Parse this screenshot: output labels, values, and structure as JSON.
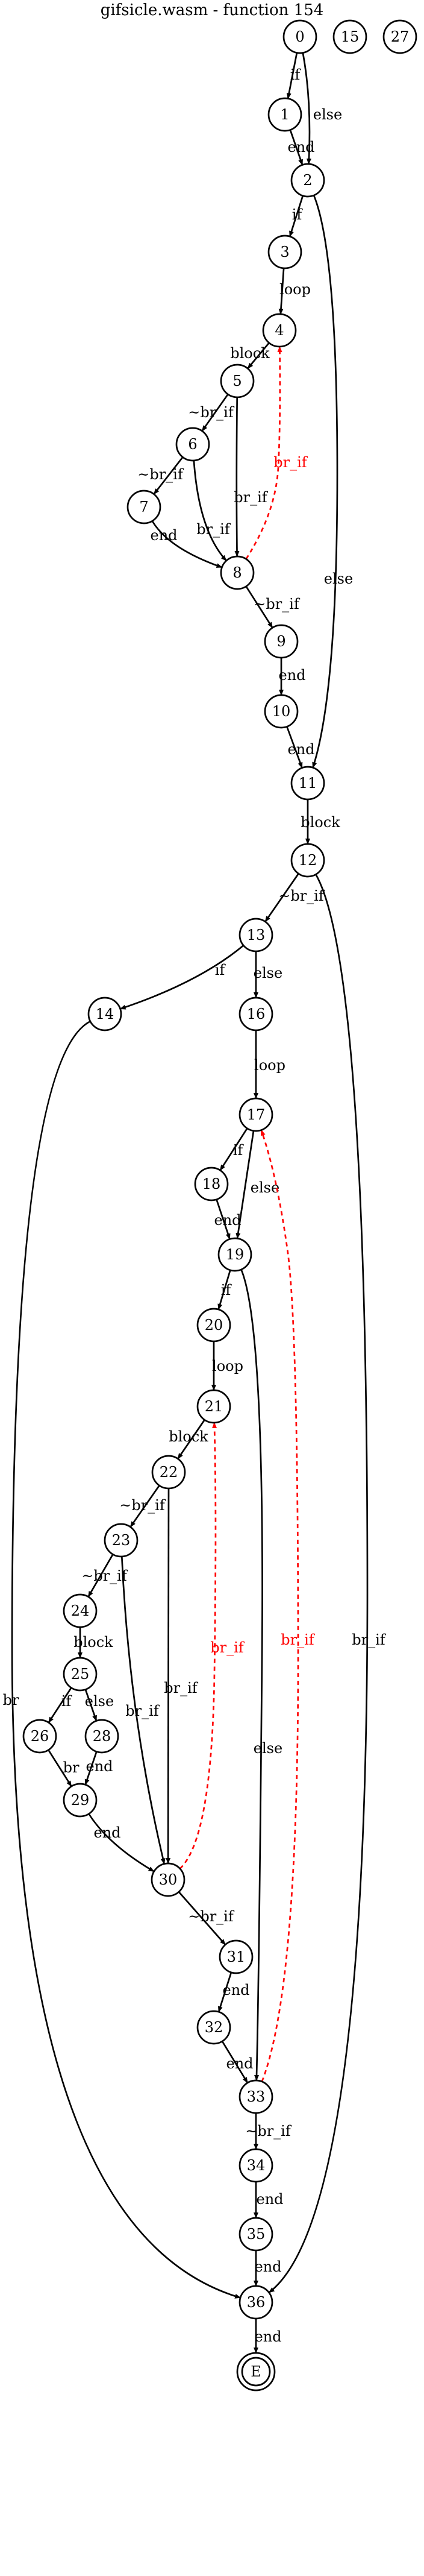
{
  "title": "gifsicle.wasm - function 154",
  "colors": {
    "normal": "#000000",
    "back": "#ff0000"
  },
  "nodes": [
    {
      "id": "n0",
      "label": "0"
    },
    {
      "id": "n15",
      "label": "15"
    },
    {
      "id": "n27",
      "label": "27"
    },
    {
      "id": "n1",
      "label": "1"
    },
    {
      "id": "n2",
      "label": "2"
    },
    {
      "id": "n3",
      "label": "3"
    },
    {
      "id": "n4",
      "label": "4"
    },
    {
      "id": "n5",
      "label": "5"
    },
    {
      "id": "n6",
      "label": "6"
    },
    {
      "id": "n7",
      "label": "7"
    },
    {
      "id": "n8",
      "label": "8"
    },
    {
      "id": "n9",
      "label": "9"
    },
    {
      "id": "n10",
      "label": "10"
    },
    {
      "id": "n11",
      "label": "11"
    },
    {
      "id": "n12",
      "label": "12"
    },
    {
      "id": "n13",
      "label": "13"
    },
    {
      "id": "n14",
      "label": "14"
    },
    {
      "id": "n16",
      "label": "16"
    },
    {
      "id": "n17",
      "label": "17"
    },
    {
      "id": "n18",
      "label": "18"
    },
    {
      "id": "n19",
      "label": "19"
    },
    {
      "id": "n20",
      "label": "20"
    },
    {
      "id": "n21",
      "label": "21"
    },
    {
      "id": "n22",
      "label": "22"
    },
    {
      "id": "n23",
      "label": "23"
    },
    {
      "id": "n24",
      "label": "24"
    },
    {
      "id": "n25",
      "label": "25"
    },
    {
      "id": "n26",
      "label": "26"
    },
    {
      "id": "n28",
      "label": "28"
    },
    {
      "id": "n29",
      "label": "29"
    },
    {
      "id": "n30",
      "label": "30"
    },
    {
      "id": "n31",
      "label": "31"
    },
    {
      "id": "n32",
      "label": "32"
    },
    {
      "id": "n33",
      "label": "33"
    },
    {
      "id": "n34",
      "label": "34"
    },
    {
      "id": "n35",
      "label": "35"
    },
    {
      "id": "n36",
      "label": "36"
    },
    {
      "id": "nE",
      "label": "E"
    }
  ],
  "edges": [
    {
      "from": "0",
      "to": "1",
      "label": "if",
      "kind": "normal"
    },
    {
      "from": "0",
      "to": "2",
      "label": "else",
      "kind": "normal"
    },
    {
      "from": "1",
      "to": "2",
      "label": "end",
      "kind": "normal"
    },
    {
      "from": "2",
      "to": "3",
      "label": "if",
      "kind": "normal"
    },
    {
      "from": "2",
      "to": "11",
      "label": "else",
      "kind": "normal"
    },
    {
      "from": "3",
      "to": "4",
      "label": "loop",
      "kind": "normal"
    },
    {
      "from": "4",
      "to": "5",
      "label": "block",
      "kind": "normal"
    },
    {
      "from": "5",
      "to": "6",
      "label": "~br_if",
      "kind": "normal"
    },
    {
      "from": "5",
      "to": "8",
      "label": "br_if",
      "kind": "normal"
    },
    {
      "from": "6",
      "to": "7",
      "label": "~br_if",
      "kind": "normal"
    },
    {
      "from": "6",
      "to": "8",
      "label": "br_if",
      "kind": "normal"
    },
    {
      "from": "7",
      "to": "8",
      "label": "end",
      "kind": "normal"
    },
    {
      "from": "8",
      "to": "4",
      "label": "br_if",
      "kind": "back"
    },
    {
      "from": "8",
      "to": "9",
      "label": "~br_if",
      "kind": "normal"
    },
    {
      "from": "9",
      "to": "10",
      "label": "end",
      "kind": "normal"
    },
    {
      "from": "10",
      "to": "11",
      "label": "end",
      "kind": "normal"
    },
    {
      "from": "11",
      "to": "12",
      "label": "block",
      "kind": "normal"
    },
    {
      "from": "12",
      "to": "13",
      "label": "~br_if",
      "kind": "normal"
    },
    {
      "from": "12",
      "to": "36",
      "label": "br_if",
      "kind": "normal"
    },
    {
      "from": "13",
      "to": "14",
      "label": "if",
      "kind": "normal"
    },
    {
      "from": "13",
      "to": "16",
      "label": "else",
      "kind": "normal"
    },
    {
      "from": "14",
      "to": "36",
      "label": "br",
      "kind": "normal"
    },
    {
      "from": "16",
      "to": "17",
      "label": "loop",
      "kind": "normal"
    },
    {
      "from": "17",
      "to": "18",
      "label": "if",
      "kind": "normal"
    },
    {
      "from": "17",
      "to": "19",
      "label": "else",
      "kind": "normal"
    },
    {
      "from": "18",
      "to": "19",
      "label": "end",
      "kind": "normal"
    },
    {
      "from": "19",
      "to": "20",
      "label": "if",
      "kind": "normal"
    },
    {
      "from": "19",
      "to": "33",
      "label": "else",
      "kind": "normal"
    },
    {
      "from": "20",
      "to": "21",
      "label": "loop",
      "kind": "normal"
    },
    {
      "from": "21",
      "to": "22",
      "label": "block",
      "kind": "normal"
    },
    {
      "from": "22",
      "to": "23",
      "label": "~br_if",
      "kind": "normal"
    },
    {
      "from": "22",
      "to": "30",
      "label": "br_if",
      "kind": "normal"
    },
    {
      "from": "23",
      "to": "24",
      "label": "~br_if",
      "kind": "normal"
    },
    {
      "from": "23",
      "to": "30",
      "label": "br_if",
      "kind": "normal"
    },
    {
      "from": "24",
      "to": "25",
      "label": "block",
      "kind": "normal"
    },
    {
      "from": "25",
      "to": "26",
      "label": "if",
      "kind": "normal"
    },
    {
      "from": "25",
      "to": "28",
      "label": "else",
      "kind": "normal"
    },
    {
      "from": "26",
      "to": "29",
      "label": "br",
      "kind": "normal"
    },
    {
      "from": "28",
      "to": "29",
      "label": "end",
      "kind": "normal"
    },
    {
      "from": "29",
      "to": "30",
      "label": "end",
      "kind": "normal"
    },
    {
      "from": "30",
      "to": "21",
      "label": "br_if",
      "kind": "back"
    },
    {
      "from": "30",
      "to": "31",
      "label": "~br_if",
      "kind": "normal"
    },
    {
      "from": "31",
      "to": "32",
      "label": "end",
      "kind": "normal"
    },
    {
      "from": "32",
      "to": "33",
      "label": "end",
      "kind": "normal"
    },
    {
      "from": "33",
      "to": "17",
      "label": "br_if",
      "kind": "back"
    },
    {
      "from": "33",
      "to": "34",
      "label": "~br_if",
      "kind": "normal"
    },
    {
      "from": "34",
      "to": "35",
      "label": "end",
      "kind": "normal"
    },
    {
      "from": "35",
      "to": "36",
      "label": "end",
      "kind": "normal"
    },
    {
      "from": "36",
      "to": "E",
      "label": "end",
      "kind": "normal"
    }
  ]
}
